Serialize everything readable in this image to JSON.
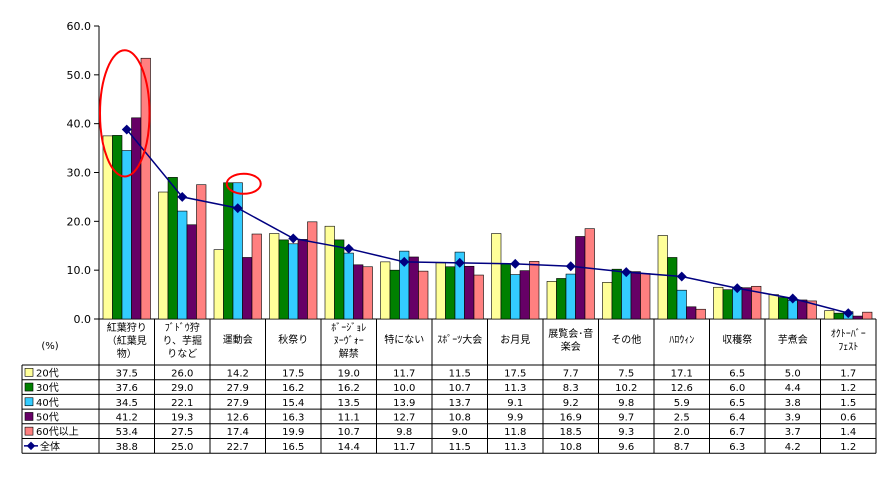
{
  "chart_data": {
    "type": "bar",
    "title": "",
    "xlabel": "",
    "ylabel": "",
    "unit_label": "(%)",
    "ylim": [
      0,
      60
    ],
    "yticks": [
      "0.0",
      "10.0",
      "20.0",
      "30.0",
      "40.0",
      "50.0",
      "60.0"
    ],
    "categories": [
      [
        "紅葉狩り",
        "（紅葉見",
        "物）"
      ],
      [
        "ﾌﾞﾄﾞｳ狩",
        "り、芋掘",
        "りなど"
      ],
      [
        "運動会"
      ],
      [
        "秋祭り"
      ],
      [
        "ﾎﾞｰｼﾞｮﾚ",
        "ﾇｰｳﾞｫｰ",
        "解禁"
      ],
      [
        "特にない"
      ],
      [
        "ｽﾎﾟｰﾂ大会"
      ],
      [
        "お月見"
      ],
      [
        "展覧会･音",
        "楽会"
      ],
      [
        "その他"
      ],
      [
        "ﾊﾛｳｨﾝ"
      ],
      [
        "収穫祭"
      ],
      [
        "芋煮会"
      ],
      [
        "ｵｸﾄｰﾊﾞｰ",
        "ﾌｪｽﾄ"
      ]
    ],
    "series": [
      {
        "name": "20代",
        "color": "#ffff99",
        "values": [
          37.5,
          26.0,
          14.2,
          17.5,
          19.0,
          11.7,
          11.5,
          17.5,
          7.7,
          7.5,
          17.1,
          6.5,
          5.0,
          1.7
        ]
      },
      {
        "name": "30代",
        "color": "#008000",
        "values": [
          37.6,
          29.0,
          27.9,
          16.2,
          16.2,
          10.0,
          10.7,
          11.3,
          8.3,
          10.2,
          12.6,
          6.0,
          4.4,
          1.2
        ]
      },
      {
        "name": "40代",
        "color": "#33ccff",
        "values": [
          34.5,
          22.1,
          27.9,
          15.4,
          13.5,
          13.9,
          13.7,
          9.1,
          9.2,
          9.8,
          5.9,
          6.5,
          3.8,
          1.5
        ]
      },
      {
        "name": "50代",
        "color": "#660066",
        "values": [
          41.2,
          19.3,
          12.6,
          16.3,
          11.1,
          12.7,
          10.8,
          9.9,
          16.9,
          9.7,
          2.5,
          6.4,
          3.9,
          0.6
        ]
      },
      {
        "name": "60代以上",
        "color": "#ff8080",
        "values": [
          53.4,
          27.5,
          17.4,
          19.9,
          10.7,
          9.8,
          9.0,
          11.8,
          18.5,
          9.3,
          2.0,
          6.7,
          3.7,
          1.4
        ]
      }
    ],
    "line_series": {
      "name": "全体",
      "color": "#000080",
      "values": [
        38.8,
        25.0,
        22.7,
        16.5,
        14.4,
        11.7,
        11.5,
        11.3,
        10.8,
        9.6,
        8.7,
        6.3,
        4.2,
        1.2
      ]
    },
    "annotations": [
      {
        "shape": "ellipse",
        "color": "#ff0000",
        "category_index": 0
      },
      {
        "shape": "ellipse",
        "color": "#ff0000",
        "category_index": 2
      }
    ],
    "grid": false,
    "legend": "data-table-left"
  }
}
